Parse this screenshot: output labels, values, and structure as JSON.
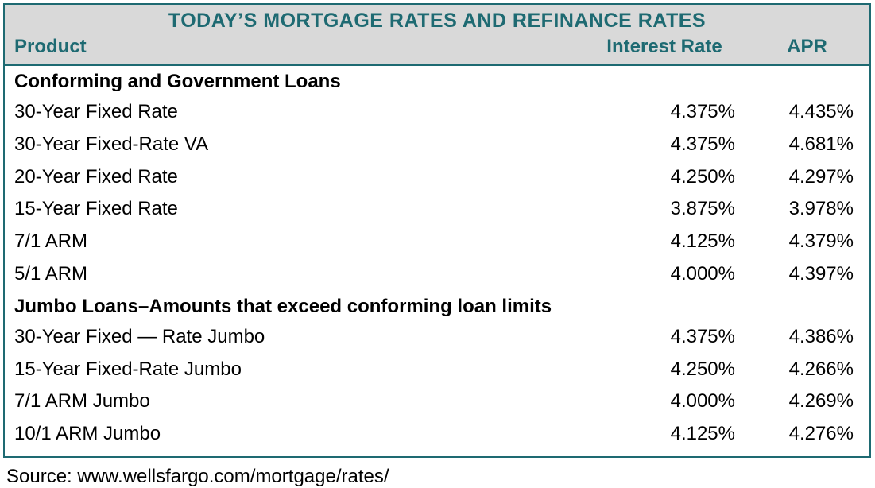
{
  "colors": {
    "border": "#1e6a72",
    "header_bg": "#d9d9d9",
    "header_text": "#1e6a72",
    "body_text": "#000000",
    "background": "#ffffff"
  },
  "typography": {
    "title_fontsize": 25,
    "header_fontsize": 24,
    "body_fontsize": 24,
    "source_fontsize": 24,
    "font_family": "Arial"
  },
  "table": {
    "title": "TODAY’S MORTGAGE RATES AND REFINANCE RATES",
    "columns": {
      "product": "Product",
      "interest_rate": "Interest Rate",
      "apr": "APR"
    },
    "sections": [
      {
        "heading": "Conforming and Government Loans",
        "rows": [
          {
            "product": "30-Year Fixed Rate",
            "interest_rate": "4.375%",
            "apr": "4.435%"
          },
          {
            "product": "30-Year Fixed-Rate VA",
            "interest_rate": "4.375%",
            "apr": "4.681%"
          },
          {
            "product": "20-Year Fixed Rate",
            "interest_rate": "4.250%",
            "apr": "4.297%"
          },
          {
            "product": "15-Year Fixed Rate",
            "interest_rate": "3.875%",
            "apr": "3.978%"
          },
          {
            "product": "7/1 ARM",
            "interest_rate": "4.125%",
            "apr": "4.379%"
          },
          {
            "product": "5/1 ARM",
            "interest_rate": "4.000%",
            "apr": "4.397%"
          }
        ]
      },
      {
        "heading": "Jumbo Loans–Amounts that exceed conforming loan limits",
        "rows": [
          {
            "product": "30-Year Fixed — Rate Jumbo",
            "interest_rate": "4.375%",
            "apr": "4.386%"
          },
          {
            "product": "15-Year Fixed-Rate Jumbo",
            "interest_rate": "4.250%",
            "apr": "4.266%"
          },
          {
            "product": "7/1 ARM Jumbo",
            "interest_rate": "4.000%",
            "apr": "4.269%"
          },
          {
            "product": "10/1 ARM Jumbo",
            "interest_rate": "4.125%",
            "apr": "4.276%"
          }
        ]
      }
    ]
  },
  "source": "Source: www.wellsfargo.com/mortgage/rates/"
}
